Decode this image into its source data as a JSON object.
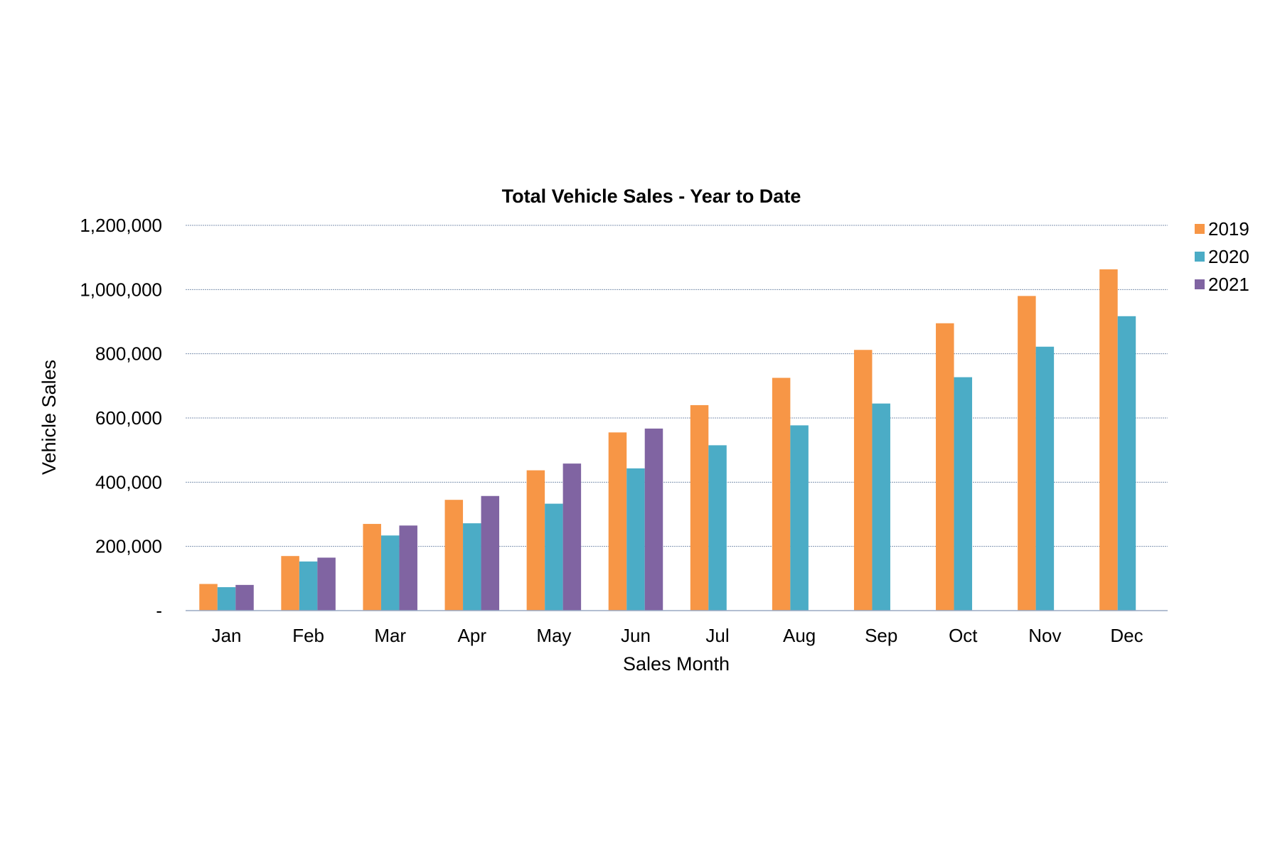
{
  "chart_data": {
    "type": "bar",
    "title": "Total Vehicle Sales - Year to Date",
    "xlabel": "Sales Month",
    "ylabel": "Vehicle Sales",
    "ylim": [
      0,
      1200000
    ],
    "y_ticks": [
      {
        "value": 0,
        "label": "-"
      },
      {
        "value": 200000,
        "label": "200,000"
      },
      {
        "value": 400000,
        "label": "400,000"
      },
      {
        "value": 600000,
        "label": "600,000"
      },
      {
        "value": 800000,
        "label": "800,000"
      },
      {
        "value": 1000000,
        "label": "1,000,000"
      },
      {
        "value": 1200000,
        "label": "1,200,000"
      }
    ],
    "grid": true,
    "legend_position": "top-right",
    "categories": [
      "Jan",
      "Feb",
      "Mar",
      "Apr",
      "May",
      "Jun",
      "Jul",
      "Aug",
      "Sep",
      "Oct",
      "Nov",
      "Dec"
    ],
    "series": [
      {
        "name": "2019",
        "color": "#F79646",
        "values": [
          83000,
          170000,
          270000,
          345000,
          437000,
          555000,
          640000,
          725000,
          812000,
          895000,
          980000,
          1063000
        ]
      },
      {
        "name": "2020",
        "color": "#4BACC6",
        "values": [
          73000,
          153000,
          234000,
          272000,
          333000,
          443000,
          515000,
          577000,
          645000,
          727000,
          822000,
          917000
        ]
      },
      {
        "name": "2021",
        "color": "#8064A2",
        "values": [
          80000,
          165000,
          265000,
          357000,
          458000,
          567000,
          null,
          null,
          null,
          null,
          null,
          null
        ]
      }
    ]
  }
}
